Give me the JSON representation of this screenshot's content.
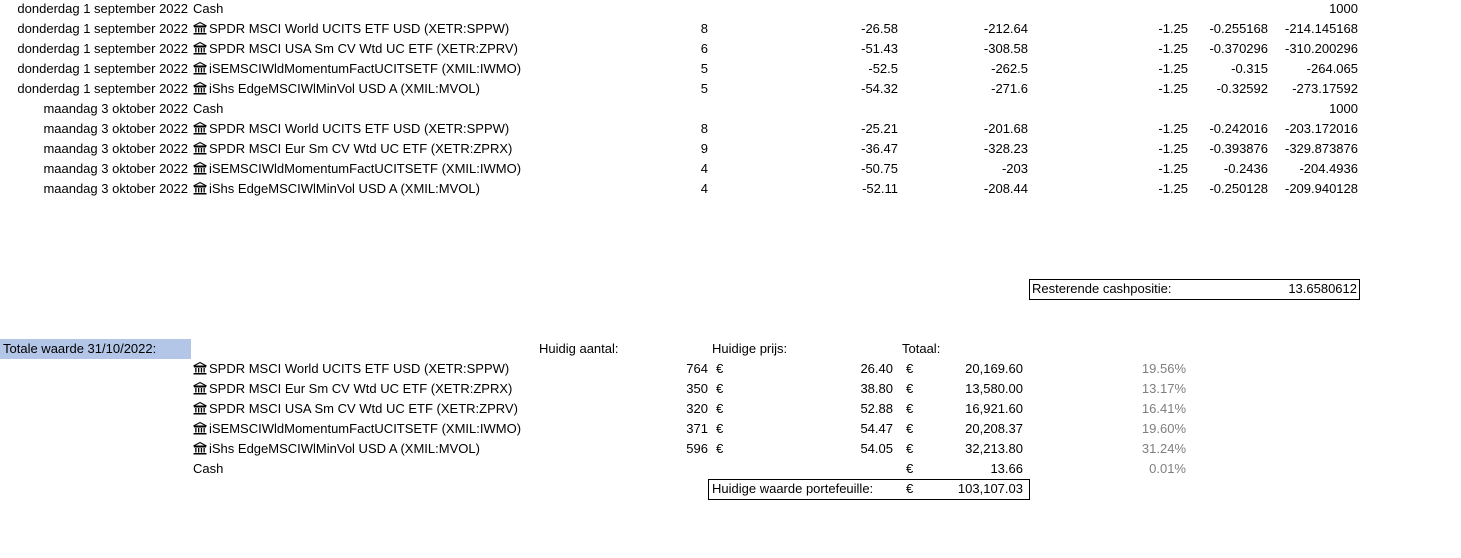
{
  "transactions": [
    {
      "date": "donderdag 1 september 2022",
      "asset": "Cash",
      "icon": null,
      "qty": "",
      "price": "",
      "amount": "",
      "fee": "",
      "tax": "",
      "total": "1000"
    },
    {
      "date": "donderdag 1 september 2022",
      "asset": "SPDR MSCI World UCITS ETF USD (XETR:SPPW)",
      "icon": "bank-icon",
      "qty": "8",
      "price": "-26.58",
      "amount": "-212.64",
      "fee": "-1.25",
      "tax": "-0.255168",
      "total": "-214.145168"
    },
    {
      "date": "donderdag 1 september 2022",
      "asset": "SPDR MSCI USA Sm CV Wtd UC ETF (XETR:ZPRV)",
      "icon": "bank-icon",
      "qty": "6",
      "price": "-51.43",
      "amount": "-308.58",
      "fee": "-1.25",
      "tax": "-0.370296",
      "total": "-310.200296"
    },
    {
      "date": "donderdag 1 september 2022",
      "asset": "iSEMSCIWldMomentumFactUCITSETF (XMIL:IWMO)",
      "icon": "bank-icon",
      "qty": "5",
      "price": "-52.5",
      "amount": "-262.5",
      "fee": "-1.25",
      "tax": "-0.315",
      "total": "-264.065"
    },
    {
      "date": "donderdag 1 september 2022",
      "asset": "iShs EdgeMSCIWlMinVol USD A (XMIL:MVOL)",
      "icon": "bank-icon",
      "qty": "5",
      "price": "-54.32",
      "amount": "-271.6",
      "fee": "-1.25",
      "tax": "-0.32592",
      "total": "-273.17592"
    },
    {
      "date": "maandag 3 oktober 2022",
      "asset": "Cash",
      "icon": null,
      "qty": "",
      "price": "",
      "amount": "",
      "fee": "",
      "tax": "",
      "total": "1000"
    },
    {
      "date": "maandag 3 oktober 2022",
      "asset": "SPDR MSCI World UCITS ETF USD (XETR:SPPW)",
      "icon": "bank-icon",
      "qty": "8",
      "price": "-25.21",
      "amount": "-201.68",
      "fee": "-1.25",
      "tax": "-0.242016",
      "total": "-203.172016"
    },
    {
      "date": "maandag 3 oktober 2022",
      "asset": "SPDR MSCI Eur Sm CV Wtd UC ETF (XETR:ZPRX)",
      "icon": "bank-icon",
      "qty": "9",
      "price": "-36.47",
      "amount": "-328.23",
      "fee": "-1.25",
      "tax": "-0.393876",
      "total": "-329.873876"
    },
    {
      "date": "maandag 3 oktober 2022",
      "asset": "iSEMSCIWldMomentumFactUCITSETF (XMIL:IWMO)",
      "icon": "bank-icon",
      "qty": "4",
      "price": "-50.75",
      "amount": "-203",
      "fee": "-1.25",
      "tax": "-0.2436",
      "total": "-204.4936"
    },
    {
      "date": "maandag 3 oktober 2022",
      "asset": "iShs EdgeMSCIWlMinVol USD A (XMIL:MVOL)",
      "icon": "bank-icon",
      "qty": "4",
      "price": "-52.11",
      "amount": "-208.44",
      "fee": "-1.25",
      "tax": "-0.250128",
      "total": "-209.940128"
    }
  ],
  "cash_remaining": {
    "label": "Resterende cashpositie:",
    "value": "13.6580612"
  },
  "summary": {
    "title": "Totale waarde 31/10/2022:",
    "col_qty": "Huidig aantal:",
    "col_price": "Huidige prijs:",
    "col_total": "Totaal:",
    "currency": "€",
    "rows": [
      {
        "asset": "SPDR MSCI World UCITS ETF USD (XETR:SPPW)",
        "icon": "bank-icon",
        "qty": "764",
        "price": "26.40",
        "total": "20,169.60",
        "pct": "19.56%"
      },
      {
        "asset": "SPDR MSCI Eur Sm CV Wtd UC ETF (XETR:ZPRX)",
        "icon": "bank-icon",
        "qty": "350",
        "price": "38.80",
        "total": "13,580.00",
        "pct": "13.17%"
      },
      {
        "asset": "SPDR MSCI USA Sm CV Wtd UC ETF (XETR:ZPRV)",
        "icon": "bank-icon",
        "qty": "320",
        "price": "52.88",
        "total": "16,921.60",
        "pct": "16.41%"
      },
      {
        "asset": "iSEMSCIWldMomentumFactUCITSETF (XMIL:IWMO)",
        "icon": "bank-icon",
        "qty": "371",
        "price": "54.47",
        "total": "20,208.37",
        "pct": "19.60%"
      },
      {
        "asset": "iShs EdgeMSCIWlMinVol USD A (XMIL:MVOL)",
        "icon": "bank-icon",
        "qty": "596",
        "price": "54.05",
        "total": "32,213.80",
        "pct": "31.24%"
      },
      {
        "asset": "Cash",
        "icon": null,
        "qty": "",
        "price": "",
        "total": "13.66",
        "pct": "0.01%"
      }
    ],
    "portfolio_label": "Huidige waarde portefeuille:",
    "portfolio_value": "103,107.03"
  },
  "colors": {
    "title_highlight": "#b4c6e7",
    "percent_text": "#7f7f7f"
  }
}
